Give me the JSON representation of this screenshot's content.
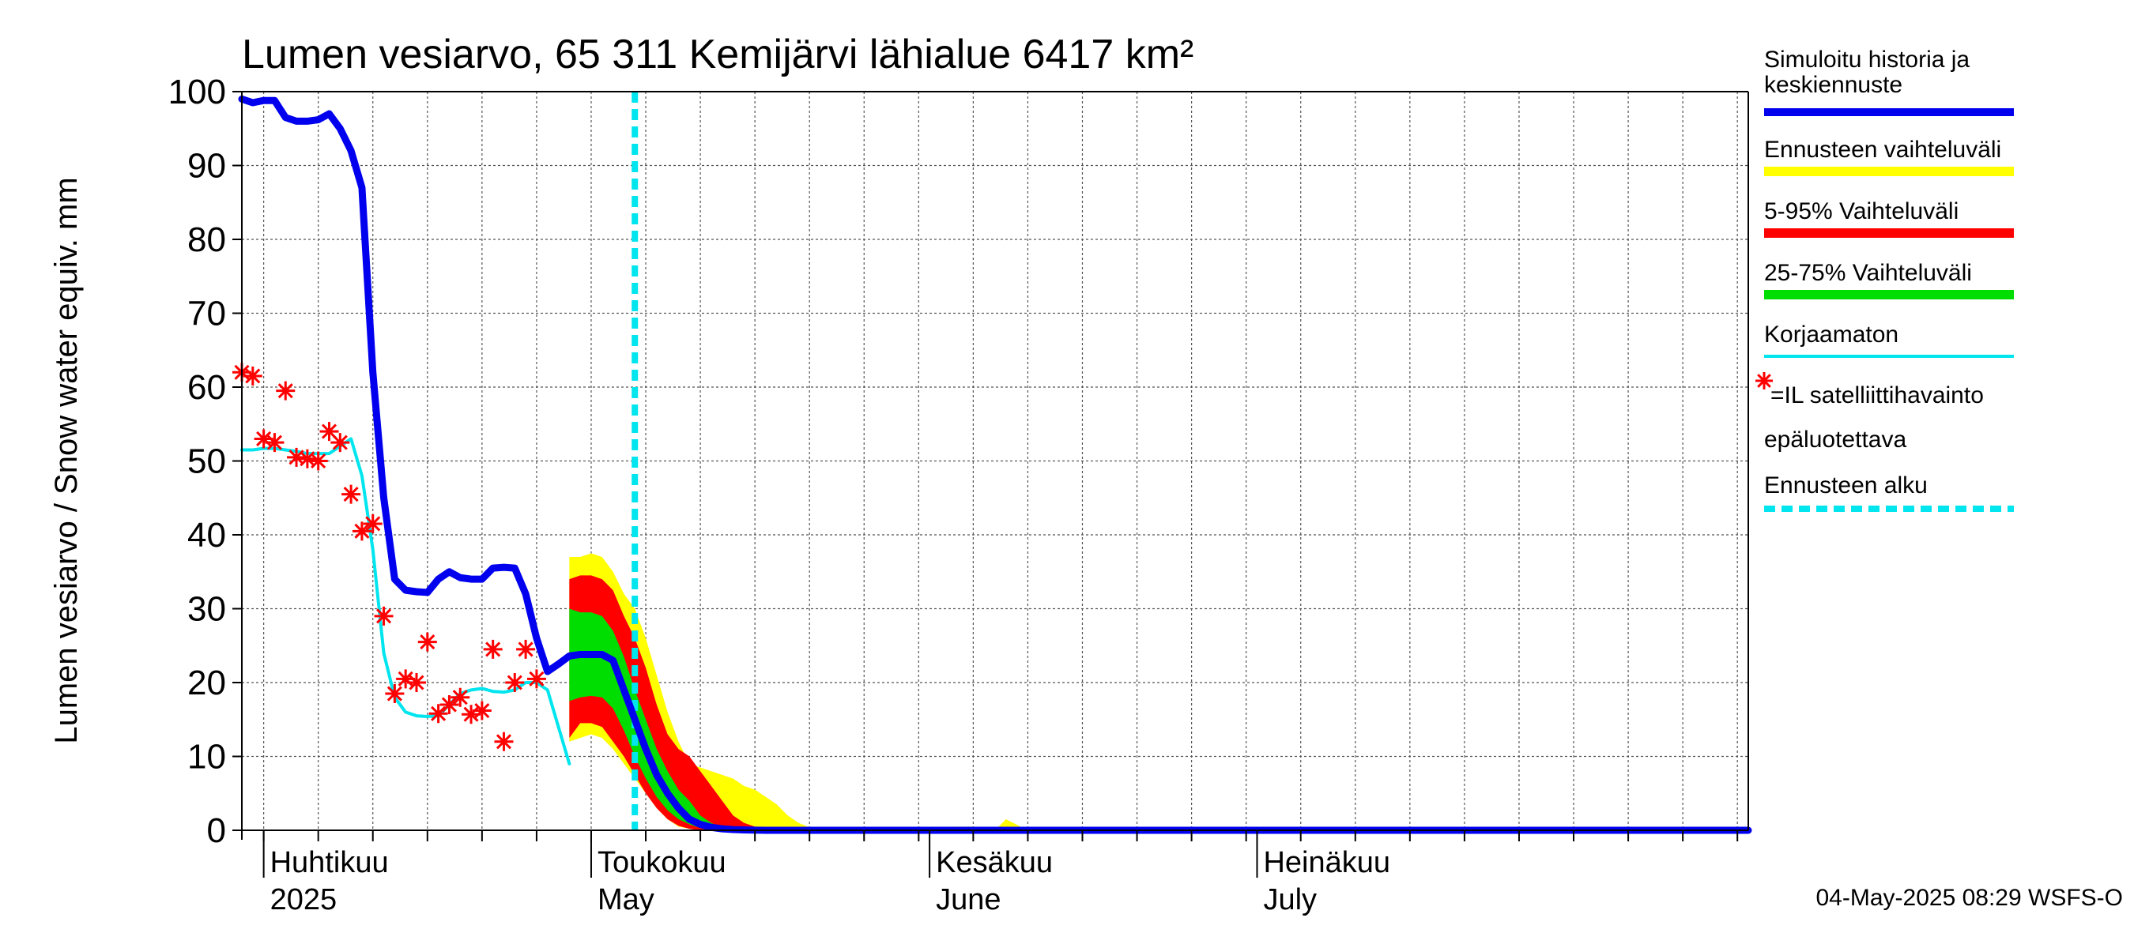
{
  "chart_data": {
    "type": "area",
    "title": "Lumen vesiarvo, 65 311 Kemijärvi lähialue 6417 km²",
    "ylabel": "Lumen vesiarvo / Snow water equiv.    mm",
    "xlabel": "",
    "ylim": [
      0,
      100
    ],
    "y_ticks": [
      "0",
      "10",
      "20",
      "30",
      "40",
      "50",
      "60",
      "70",
      "80",
      "90",
      "100"
    ],
    "x_unit": "day of year 2025",
    "xlim": [
      88,
      226
    ],
    "month_labels": [
      {
        "fi": "Huhtikuu",
        "en": "2025",
        "day": 91
      },
      {
        "fi": "Toukokuu",
        "en": "May",
        "day": 121
      },
      {
        "fi": "Kesäkuu",
        "en": "June",
        "day": 152
      },
      {
        "fi": "Heinäkuu",
        "en": "July",
        "day": 182
      }
    ],
    "forecast_start_day": 124,
    "series": [
      {
        "name": "Simuloitu historia ja keskiennuste",
        "color": "#0000ee",
        "x": [
          88,
          89,
          90,
          91,
          92,
          93,
          94,
          95,
          96,
          97,
          98,
          99,
          100,
          101,
          102,
          103,
          104,
          105,
          106,
          107,
          108,
          109,
          110,
          111,
          112,
          113,
          114,
          115,
          116,
          117,
          118,
          119,
          120,
          121,
          122,
          123,
          124,
          125,
          126,
          127,
          128,
          129,
          130,
          131,
          132,
          133,
          134,
          135,
          136,
          137,
          138,
          139,
          140,
          142,
          145,
          150,
          226
        ],
        "values": [
          99,
          98.5,
          98.8,
          98.8,
          96.5,
          96,
          96,
          96.2,
          97,
          95,
          92,
          87,
          62,
          45,
          34,
          32.5,
          32.3,
          32.2,
          34,
          35,
          34.2,
          34,
          34,
          35.5,
          35.6,
          35.5,
          32,
          26,
          21.5,
          22.5,
          23.6,
          23.8,
          23.8,
          23.8,
          23,
          19,
          15,
          11,
          7.5,
          5,
          3,
          1.5,
          0.8,
          0.4,
          0.2,
          0.1,
          0.05,
          0.02,
          0,
          0,
          0,
          0,
          0,
          0,
          0,
          0,
          0
        ]
      },
      {
        "name": "Korjaamaton",
        "color": "#00e5ee",
        "x": [
          88,
          89,
          90,
          91,
          92,
          93,
          94,
          95,
          96,
          97,
          98,
          99,
          100,
          101,
          102,
          103,
          104,
          105,
          106,
          107,
          108,
          109,
          110,
          111,
          112,
          113,
          114,
          115,
          116,
          117,
          118
        ],
        "values": [
          51.5,
          51.5,
          51.7,
          51.7,
          51.5,
          51.3,
          51,
          51,
          51,
          52,
          53,
          48,
          38,
          24,
          18,
          16,
          15.5,
          15.4,
          15.5,
          17,
          18.5,
          19,
          19.2,
          18.8,
          18.7,
          19,
          20,
          20,
          19,
          14,
          9
        ]
      }
    ],
    "bands": [
      {
        "name": "Ennusteen vaihteluväli",
        "color": "#ffff00",
        "x": [
          118,
          119,
          120,
          121,
          122,
          123,
          124,
          125,
          126,
          127,
          128,
          129,
          130,
          131,
          132,
          133,
          134,
          135,
          136,
          137,
          138,
          139,
          140,
          141,
          142,
          143,
          145,
          150,
          153,
          155,
          156,
          157,
          158,
          160
        ],
        "upper": [
          37,
          37,
          37.5,
          37,
          35,
          32,
          30,
          26,
          21,
          16,
          12,
          9,
          8.5,
          8,
          7.5,
          7,
          6,
          5.5,
          4.5,
          3.5,
          2,
          1,
          0.4,
          0.2,
          0,
          0,
          0,
          0,
          0.5,
          0.5,
          0.3,
          0,
          1.5,
          0
        ],
        "lower": [
          12,
          12.5,
          13,
          12.5,
          11,
          9,
          7,
          5,
          3,
          1.5,
          0.5,
          0.2,
          0,
          0,
          0,
          0,
          0,
          0,
          0,
          0,
          0,
          0,
          0,
          0,
          0,
          0,
          0,
          0,
          0,
          0,
          0,
          0,
          0,
          0
        ]
      },
      {
        "name": "5-95% Vaihteluväli",
        "color": "#ff0000",
        "x": [
          118,
          119,
          120,
          121,
          122,
          123,
          124,
          125,
          126,
          127,
          128,
          129,
          130,
          131,
          132,
          133,
          134,
          135,
          136,
          137,
          138,
          139,
          140,
          141,
          142
        ],
        "upper": [
          34,
          34.5,
          34.5,
          34,
          32.5,
          29,
          26,
          22,
          17,
          13,
          11,
          10,
          8,
          6,
          4,
          2,
          1,
          0.5,
          0.2,
          0.1,
          0,
          0,
          0,
          0,
          0
        ],
        "lower": [
          12.5,
          14.5,
          14.5,
          14,
          12,
          10,
          7.5,
          5,
          3,
          1.5,
          0.6,
          0.2,
          0,
          0,
          0,
          0,
          0,
          0,
          0,
          0,
          0,
          0,
          0,
          0,
          0
        ]
      },
      {
        "name": "25-75% Vaihteluväli",
        "color": "#00dd00",
        "x": [
          118,
          119,
          120,
          121,
          122,
          123,
          124,
          125,
          126,
          127,
          128,
          129,
          130,
          131,
          132,
          133,
          134,
          135
        ],
        "upper": [
          30,
          29.5,
          29.5,
          29,
          27,
          23.5,
          19,
          15,
          11,
          8,
          5.5,
          4,
          2,
          1,
          0.3,
          0.1,
          0,
          0
        ],
        "lower": [
          17.5,
          18,
          18.2,
          18,
          16.5,
          13.5,
          10,
          7,
          4.5,
          2.7,
          1.5,
          0.8,
          0.3,
          0.1,
          0,
          0,
          0,
          0
        ]
      }
    ],
    "satellite_observations": {
      "name": "=IL satelliittihavainto epäluotettava",
      "color": "#ff0000",
      "x": [
        88,
        89,
        90,
        91,
        92,
        93,
        94,
        95,
        96,
        97,
        98,
        99,
        100,
        101,
        102,
        103,
        104,
        105,
        106,
        107,
        108,
        109,
        110,
        111,
        112,
        113,
        114,
        115
      ],
      "values": [
        62,
        61.5,
        53,
        52.5,
        59.5,
        50.5,
        50.3,
        50,
        54,
        52.5,
        45.5,
        40.5,
        41.5,
        29,
        18.5,
        20.5,
        20,
        25.5,
        15.8,
        17,
        18,
        15.7,
        16.2,
        24.5,
        12,
        20,
        24.5,
        20.5
      ]
    },
    "legend": [
      {
        "label": "Simuloitu historia ja keskiennuste",
        "color": "#0000ee",
        "style": "thick-line"
      },
      {
        "label": "Ennusteen vaihteluväli",
        "color": "#ffff00",
        "style": "thick-line"
      },
      {
        "label": "5-95% Vaihteluväli",
        "color": "#ff0000",
        "style": "thick-line"
      },
      {
        "label": "25-75% Vaihteluväli",
        "color": "#00dd00",
        "style": "thick-line"
      },
      {
        "label": "Korjaamaton",
        "color": "#00e5ee",
        "style": "thin-line"
      },
      {
        "label": "=IL satelliittihavainto",
        "color": "#ff0000",
        "style": "star"
      },
      {
        "label": "epäluotettava",
        "color": "#000000",
        "style": "text"
      },
      {
        "label": "Ennusteen alku",
        "color": "#00e5ee",
        "style": "dashed-line"
      }
    ],
    "legend_position": "right",
    "grid": true
  },
  "footer": {
    "timestamp": "04-May-2025 08:29 WSFS-O"
  }
}
